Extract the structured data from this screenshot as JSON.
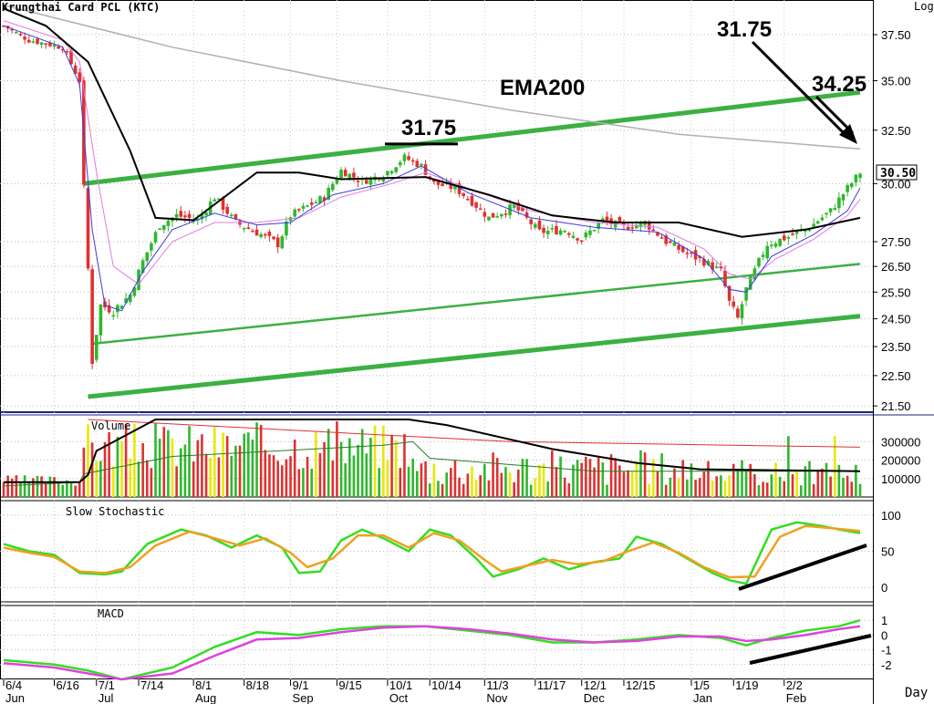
{
  "title": "Krungthai Card PCL (KTC)",
  "scale_label": "Log",
  "period_label": "Day",
  "last_price_label": "30.50",
  "annotations": {
    "ema200": "EMA200",
    "high_left": "31.75",
    "high_top": "31.75",
    "target": "34.25"
  },
  "colors": {
    "up": "#2db82d",
    "down": "#e03030",
    "channel": "#3cb043",
    "ema200": "#b0b0b0",
    "ema_black": "#000000",
    "ema_blue": "#3b3bdf",
    "ema_pink": "#e07be0",
    "stoch_fast": "#33dd22",
    "stoch_slow": "#f0a020",
    "macd": "#33dd22",
    "macd_signal": "#dd44dd",
    "vol_yellow": "#e8e800"
  },
  "chart_data": [
    {
      "type": "candlestick",
      "title": "Krungthai Card PCL (KTC)",
      "y_scale": "log",
      "ylim": [
        21.3,
        39.5
      ],
      "y_ticks": [
        "37.50",
        "35.00",
        "32.50",
        "30.00",
        "27.50",
        "26.50",
        "25.50",
        "24.50",
        "23.50",
        "22.50",
        "21.50"
      ],
      "x_ticks": [
        "6/4",
        "6/16",
        "7/1",
        "7/14",
        "8/1",
        "8/18",
        "9/1",
        "9/15",
        "10/1",
        "10/14",
        "11/3",
        "11/17",
        "12/1",
        "12/15",
        "1/5",
        "1/19",
        "2/2"
      ],
      "month_labels": [
        "Jun",
        "Jul",
        "Aug",
        "Sep",
        "Oct",
        "Nov",
        "Dec",
        "Jan",
        "Feb"
      ],
      "close_path": [
        [
          0,
          38.0
        ],
        [
          6,
          37.2
        ],
        [
          14,
          36.8
        ],
        [
          18,
          35.0
        ],
        [
          19,
          29.8
        ],
        [
          21,
          23.0
        ],
        [
          23,
          25.0
        ],
        [
          26,
          24.8
        ],
        [
          30,
          25.4
        ],
        [
          33,
          26.7
        ],
        [
          37,
          28.2
        ],
        [
          41,
          28.6
        ],
        [
          46,
          28.4
        ],
        [
          50,
          29.4
        ],
        [
          55,
          28.3
        ],
        [
          61,
          27.8
        ],
        [
          65,
          27.4
        ],
        [
          68,
          28.6
        ],
        [
          72,
          29.0
        ],
        [
          76,
          29.4
        ],
        [
          80,
          30.6
        ],
        [
          85,
          30.1
        ],
        [
          90,
          30.4
        ],
        [
          95,
          31.2
        ],
        [
          99,
          30.8
        ],
        [
          102,
          30.0
        ],
        [
          107,
          29.8
        ],
        [
          111,
          29.2
        ],
        [
          115,
          28.5
        ],
        [
          121,
          29.0
        ],
        [
          127,
          27.9
        ],
        [
          133,
          28.0
        ],
        [
          137,
          27.6
        ],
        [
          142,
          28.4
        ],
        [
          147,
          28.1
        ],
        [
          152,
          28.3
        ],
        [
          157,
          27.5
        ],
        [
          162,
          27.0
        ],
        [
          166,
          26.7
        ],
        [
          170,
          26.3
        ],
        [
          172,
          25.1
        ],
        [
          174,
          24.5
        ],
        [
          176,
          25.6
        ],
        [
          181,
          27.4
        ],
        [
          186,
          27.7
        ],
        [
          191,
          28.1
        ],
        [
          196,
          28.8
        ],
        [
          200,
          29.8
        ],
        [
          203,
          30.5
        ]
      ],
      "ema200": [
        [
          0,
          39.2
        ],
        [
          40,
          36.8
        ],
        [
          80,
          35.0
        ],
        [
          120,
          33.5
        ],
        [
          160,
          32.3
        ],
        [
          203,
          31.6
        ]
      ],
      "ema_black": [
        [
          0,
          39.0
        ],
        [
          10,
          38.0
        ],
        [
          20,
          36.0
        ],
        [
          30,
          31.5
        ],
        [
          36,
          28.5
        ],
        [
          45,
          28.4
        ],
        [
          60,
          30.5
        ],
        [
          70,
          30.5
        ],
        [
          80,
          30.2
        ],
        [
          100,
          30.3
        ],
        [
          115,
          29.5
        ],
        [
          130,
          28.6
        ],
        [
          145,
          28.3
        ],
        [
          160,
          28.3
        ],
        [
          175,
          27.7
        ],
        [
          190,
          28.0
        ],
        [
          203,
          28.5
        ]
      ],
      "ema_blue": [
        [
          0,
          38.0
        ],
        [
          14,
          36.8
        ],
        [
          18,
          34.8
        ],
        [
          21,
          28.0
        ],
        [
          24,
          25.0
        ],
        [
          28,
          24.8
        ],
        [
          33,
          26.3
        ],
        [
          40,
          28.0
        ],
        [
          50,
          28.7
        ],
        [
          60,
          28.2
        ],
        [
          68,
          28.3
        ],
        [
          78,
          29.5
        ],
        [
          90,
          30.0
        ],
        [
          99,
          30.8
        ],
        [
          110,
          29.6
        ],
        [
          125,
          28.5
        ],
        [
          140,
          28.1
        ],
        [
          155,
          27.9
        ],
        [
          166,
          26.8
        ],
        [
          172,
          25.6
        ],
        [
          176,
          25.5
        ],
        [
          182,
          26.9
        ],
        [
          192,
          27.8
        ],
        [
          200,
          28.8
        ],
        [
          203,
          29.8
        ]
      ],
      "ema_pink": [
        [
          0,
          38.3
        ],
        [
          14,
          37.2
        ],
        [
          18,
          36.0
        ],
        [
          22,
          30.5
        ],
        [
          26,
          26.5
        ],
        [
          32,
          25.8
        ],
        [
          40,
          27.5
        ],
        [
          50,
          28.3
        ],
        [
          60,
          28.3
        ],
        [
          70,
          28.5
        ],
        [
          80,
          29.4
        ],
        [
          92,
          30.0
        ],
        [
          100,
          30.5
        ],
        [
          110,
          29.8
        ],
        [
          125,
          28.8
        ],
        [
          140,
          28.3
        ],
        [
          155,
          28.1
        ],
        [
          166,
          27.2
        ],
        [
          172,
          26.2
        ],
        [
          177,
          26.0
        ],
        [
          183,
          26.8
        ],
        [
          192,
          27.6
        ],
        [
          200,
          28.6
        ],
        [
          203,
          29.3
        ]
      ],
      "channel_top": [
        [
          19,
          30.0
        ],
        [
          203,
          34.4
        ]
      ],
      "channel_mid": [
        [
          21,
          23.6
        ],
        [
          203,
          26.6
        ]
      ],
      "channel_bottom": [
        [
          20,
          21.8
        ],
        [
          203,
          24.6
        ]
      ],
      "highs_marked": [
        {
          "x": 99,
          "y": 31.75
        },
        {
          "x": 203,
          "y": 31.75
        }
      ]
    },
    {
      "type": "bar",
      "title": "Volume",
      "ylim": [
        0,
        420000
      ],
      "y_ticks": [
        "300000",
        "200000",
        "100000"
      ],
      "avg_long": [
        [
          20,
          420000
        ],
        [
          120,
          300000
        ],
        [
          160,
          285000
        ],
        [
          203,
          270000
        ]
      ],
      "avg_short": [
        [
          0,
          60000
        ],
        [
          18,
          80000
        ],
        [
          19,
          125000
        ],
        [
          40,
          220000
        ],
        [
          90,
          280000
        ],
        [
          97,
          300000
        ],
        [
          101,
          210000
        ],
        [
          140,
          140000
        ],
        [
          203,
          140000
        ]
      ],
      "avg_black": [
        [
          0,
          80000
        ],
        [
          18,
          80000
        ],
        [
          20,
          120000
        ],
        [
          22,
          250000
        ],
        [
          36,
          420000
        ],
        [
          96,
          420000
        ],
        [
          105,
          390000
        ],
        [
          130,
          260000
        ],
        [
          150,
          185000
        ],
        [
          165,
          150000
        ],
        [
          203,
          140000
        ]
      ]
    },
    {
      "type": "line",
      "title": "Slow Stochastic",
      "ylim": [
        -20,
        120
      ],
      "y_ticks": [
        "100",
        "50",
        "0"
      ],
      "series": [
        {
          "values": [
            [
              0,
              60
            ],
            [
              6,
              50
            ],
            [
              12,
              45
            ],
            [
              18,
              20
            ],
            [
              24,
              18
            ],
            [
              28,
              22
            ],
            [
              34,
              60
            ],
            [
              42,
              80
            ],
            [
              48,
              72
            ],
            [
              54,
              55
            ],
            [
              60,
              72
            ],
            [
              66,
              55
            ],
            [
              70,
              20
            ],
            [
              75,
              22
            ],
            [
              80,
              65
            ],
            [
              85,
              80
            ],
            [
              90,
              68
            ],
            [
              96,
              50
            ],
            [
              101,
              80
            ],
            [
              106,
              72
            ],
            [
              112,
              40
            ],
            [
              116,
              15
            ],
            [
              122,
              25
            ],
            [
              128,
              40
            ],
            [
              134,
              25
            ],
            [
              140,
              35
            ],
            [
              146,
              40
            ],
            [
              150,
              70
            ],
            [
              156,
              60
            ],
            [
              162,
              40
            ],
            [
              168,
              20
            ],
            [
              172,
              10
            ],
            [
              176,
              5
            ],
            [
              182,
              80
            ],
            [
              188,
              90
            ],
            [
              194,
              85
            ],
            [
              198,
              80
            ],
            [
              203,
              75
            ]
          ]
        },
        {
          "values": [
            [
              0,
              55
            ],
            [
              6,
              48
            ],
            [
              12,
              42
            ],
            [
              18,
              22
            ],
            [
              24,
              20
            ],
            [
              30,
              28
            ],
            [
              36,
              58
            ],
            [
              44,
              77
            ],
            [
              50,
              68
            ],
            [
              56,
              58
            ],
            [
              62,
              68
            ],
            [
              68,
              48
            ],
            [
              72,
              28
            ],
            [
              78,
              40
            ],
            [
              84,
              72
            ],
            [
              90,
              72
            ],
            [
              96,
              55
            ],
            [
              102,
              75
            ],
            [
              108,
              65
            ],
            [
              114,
              38
            ],
            [
              118,
              22
            ],
            [
              124,
              30
            ],
            [
              130,
              38
            ],
            [
              136,
              32
            ],
            [
              142,
              36
            ],
            [
              148,
              50
            ],
            [
              154,
              62
            ],
            [
              160,
              48
            ],
            [
              166,
              28
            ],
            [
              172,
              14
            ],
            [
              178,
              15
            ],
            [
              184,
              70
            ],
            [
              190,
              85
            ],
            [
              196,
              82
            ],
            [
              203,
              78
            ]
          ]
        }
      ]
    },
    {
      "type": "line",
      "title": "MACD",
      "ylim": [
        -3,
        2
      ],
      "y_ticks": [
        "1",
        "0",
        "-1",
        "-2"
      ],
      "series": [
        {
          "values": [
            [
              0,
              -1.7
            ],
            [
              12,
              -2.0
            ],
            [
              20,
              -2.4
            ],
            [
              28,
              -3.0
            ],
            [
              40,
              -2.2
            ],
            [
              50,
              -0.8
            ],
            [
              60,
              0.2
            ],
            [
              70,
              0.0
            ],
            [
              80,
              0.4
            ],
            [
              90,
              0.6
            ],
            [
              100,
              0.6
            ],
            [
              110,
              0.3
            ],
            [
              120,
              0.0
            ],
            [
              130,
              -0.5
            ],
            [
              140,
              -0.5
            ],
            [
              150,
              -0.3
            ],
            [
              160,
              0.0
            ],
            [
              170,
              -0.2
            ],
            [
              176,
              -0.7
            ],
            [
              182,
              -0.2
            ],
            [
              190,
              0.3
            ],
            [
              198,
              0.6
            ],
            [
              203,
              1.0
            ]
          ]
        },
        {
          "values": [
            [
              0,
              -1.9
            ],
            [
              12,
              -2.2
            ],
            [
              20,
              -2.6
            ],
            [
              28,
              -3.0
            ],
            [
              40,
              -2.6
            ],
            [
              50,
              -1.4
            ],
            [
              60,
              -0.3
            ],
            [
              70,
              -0.2
            ],
            [
              80,
              0.2
            ],
            [
              90,
              0.5
            ],
            [
              100,
              0.6
            ],
            [
              110,
              0.4
            ],
            [
              120,
              0.1
            ],
            [
              130,
              -0.3
            ],
            [
              140,
              -0.5
            ],
            [
              150,
              -0.4
            ],
            [
              160,
              -0.1
            ],
            [
              170,
              -0.1
            ],
            [
              176,
              -0.4
            ],
            [
              182,
              -0.3
            ],
            [
              190,
              0.0
            ],
            [
              198,
              0.4
            ],
            [
              203,
              0.6
            ]
          ]
        }
      ]
    }
  ]
}
